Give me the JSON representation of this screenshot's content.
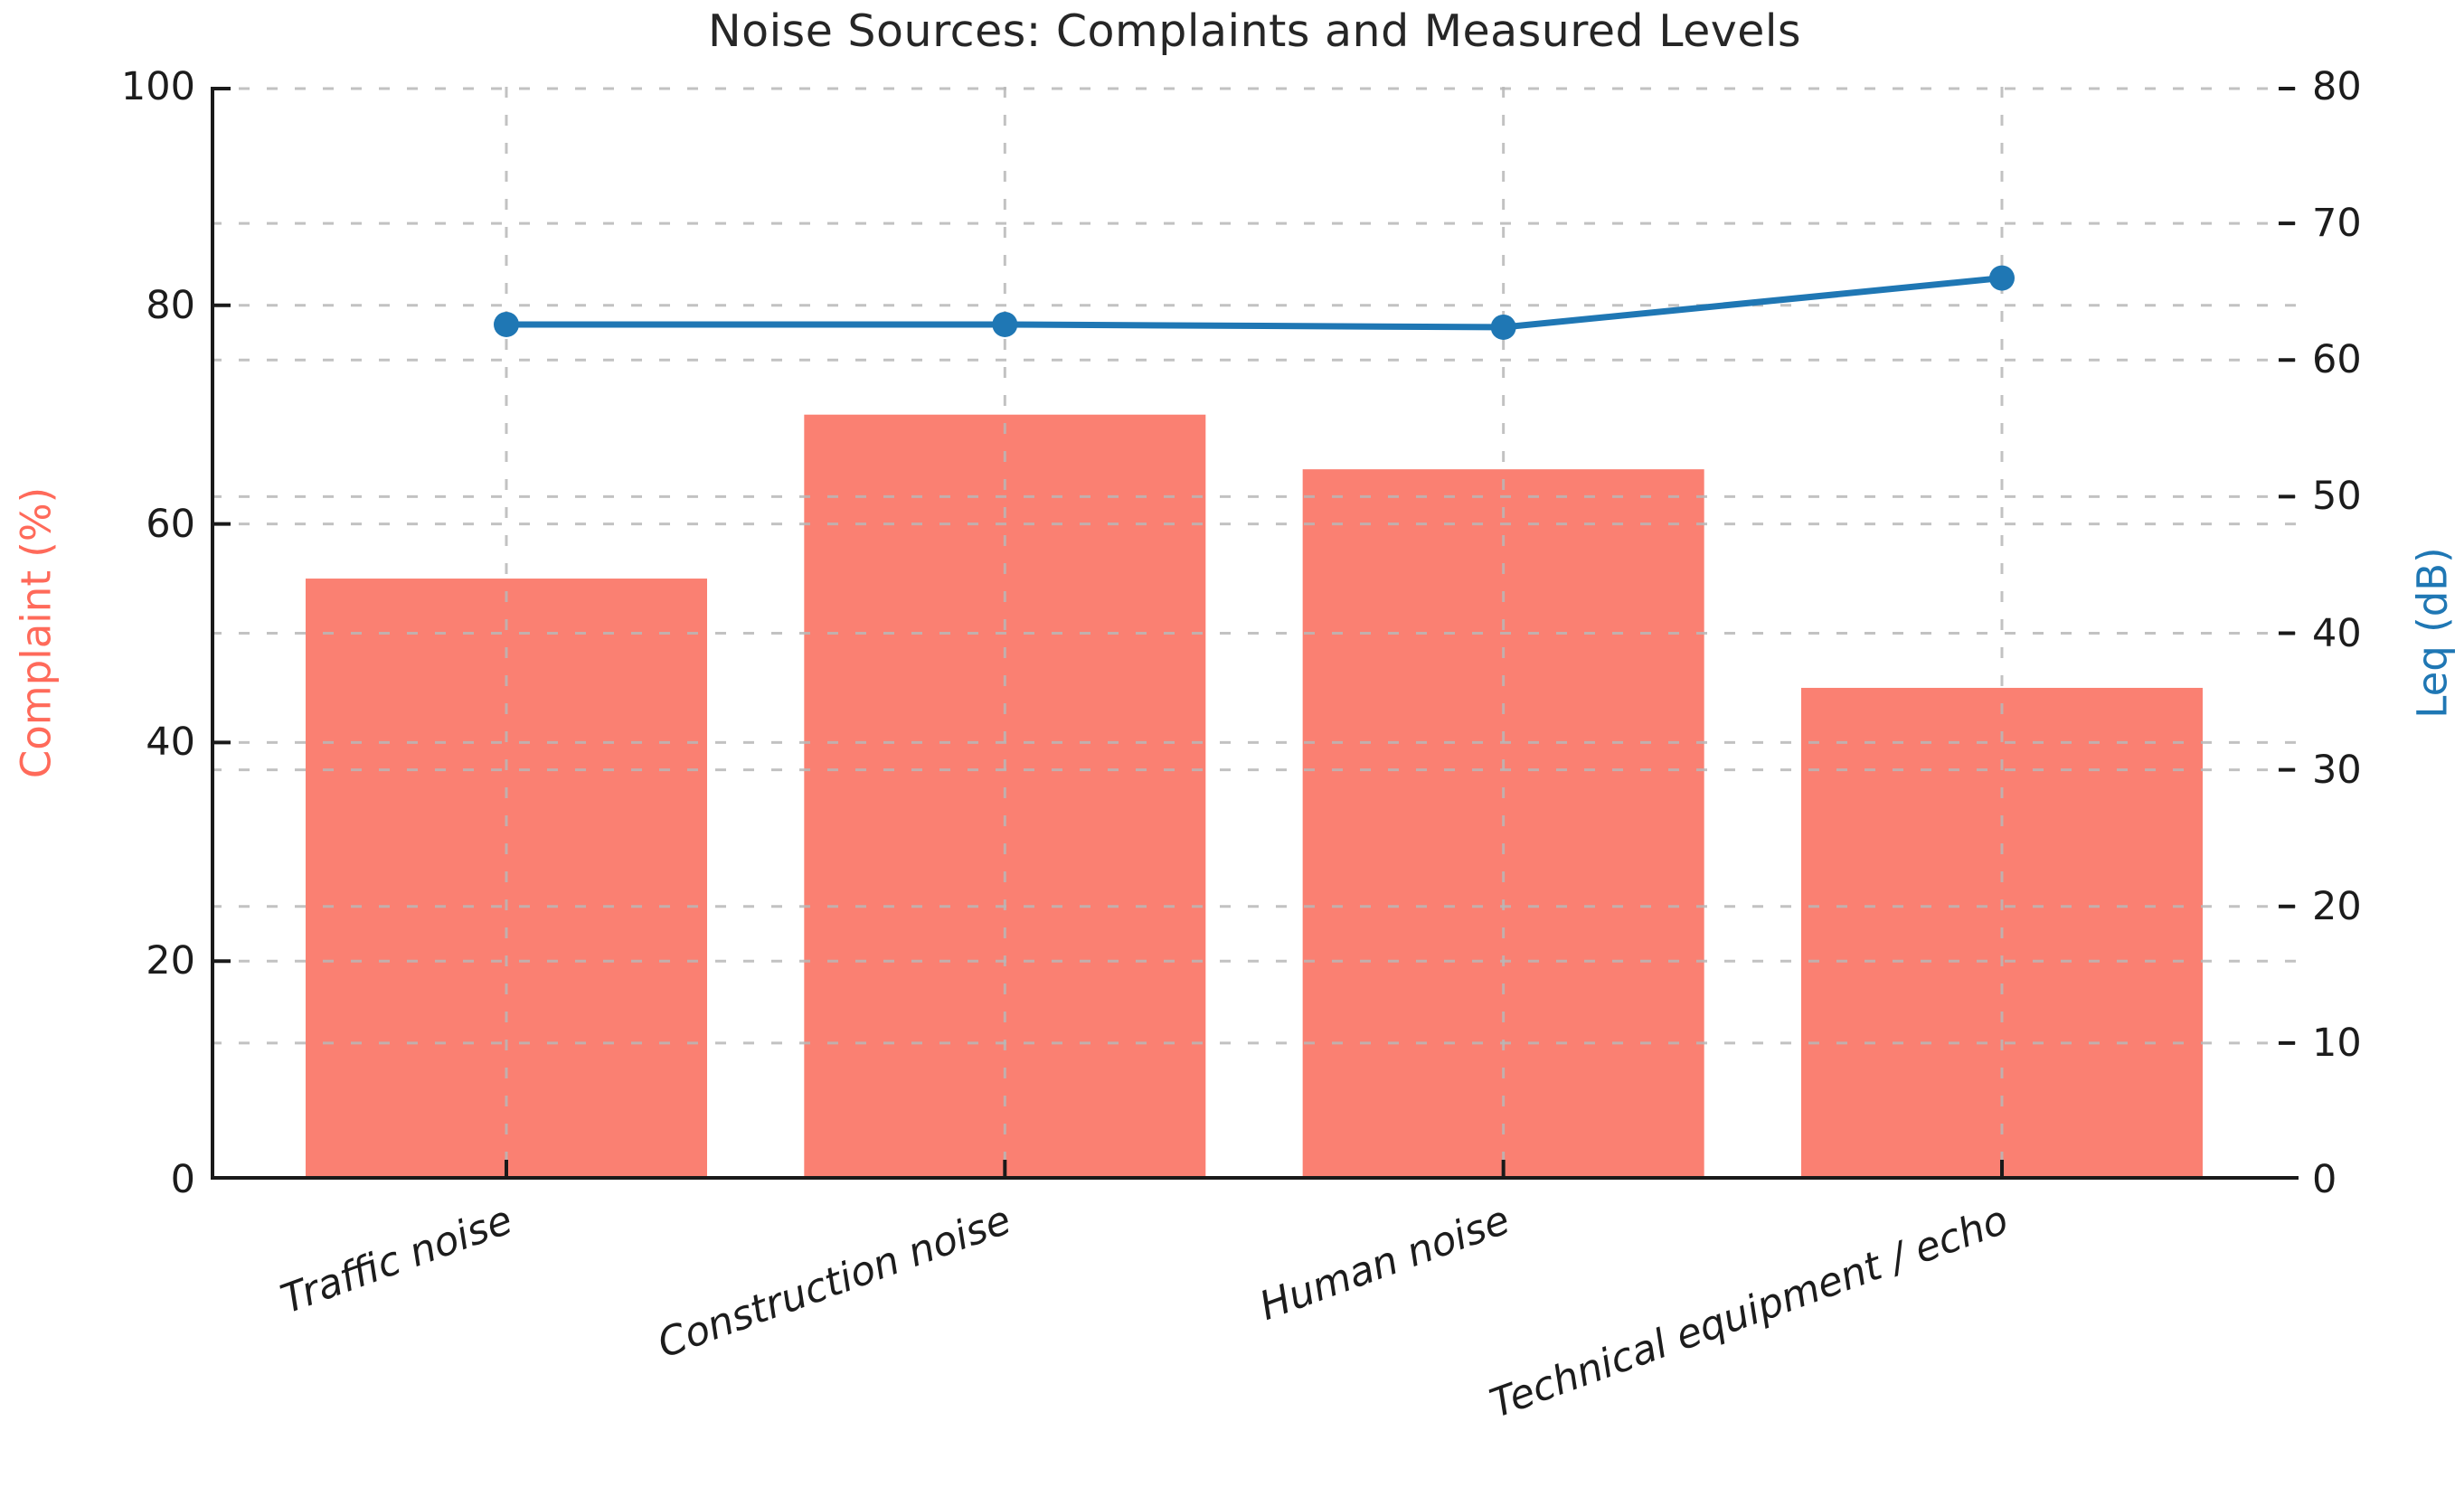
{
  "figure": {
    "background_color": "#ffffff"
  },
  "chart_data": {
    "type": "combo_bar_line",
    "title": "Noise Sources: Complaints and Measured Levels",
    "categories": [
      "Traffic noise",
      "Construction noise",
      "Human noise",
      "Technical equipment / echo"
    ],
    "series": [
      {
        "name": "Complaint (%)",
        "type": "bar",
        "axis": "left",
        "color": "#fa8072",
        "values": [
          55,
          70,
          65,
          45
        ]
      },
      {
        "name": "Leq (dB)",
        "type": "line",
        "axis": "right",
        "color": "#1f77b4",
        "marker": "circle",
        "values": [
          62.6,
          62.6,
          62.4,
          66.0
        ]
      }
    ],
    "left_axis": {
      "label": "Complaint (%)",
      "label_color": "#ff6a5a",
      "min": 0,
      "max": 100,
      "ticks": [
        0,
        20,
        40,
        60,
        80,
        100
      ]
    },
    "right_axis": {
      "label": "Leq (dB)",
      "label_color": "#1f77b4",
      "min": 0,
      "max": 80,
      "ticks": [
        0,
        10,
        20,
        30,
        40,
        50,
        60,
        70,
        80
      ]
    },
    "x_axis": {
      "tick_label_style": "italic",
      "tick_label_rotation_deg": 20
    },
    "grid": {
      "on": true,
      "style": "dashed",
      "color": "#b7b7b7",
      "horizontal_lines": "at left-axis and right-axis tick positions",
      "vertical_lines": "at category centers"
    },
    "spines": {
      "left": true,
      "bottom": true,
      "top": false,
      "right": false,
      "color": "#1a1a1a"
    }
  }
}
